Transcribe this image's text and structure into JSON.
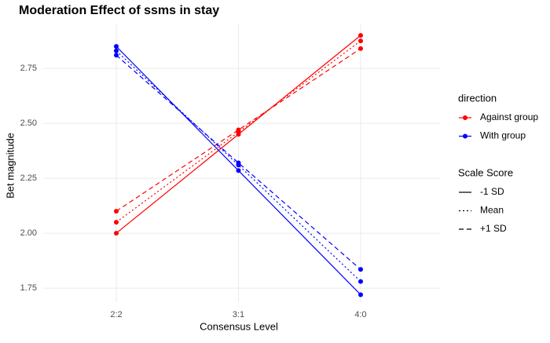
{
  "chart_data": {
    "type": "line",
    "title": "Moderation Effect of ssms in stay",
    "x_label": "Consensus Level",
    "y_label": "Bet magnitude",
    "categories": [
      "2:2",
      "3:1",
      "4:0"
    ],
    "ylim": [
      1.686,
      2.954
    ],
    "yticks": [
      {
        "value": 1.75,
        "label": "1.75"
      },
      {
        "value": 2,
        "label": "2.00"
      },
      {
        "value": 2.25,
        "label": "2.25"
      },
      {
        "value": 2.5,
        "label": "2.50"
      },
      {
        "value": 2.75,
        "label": "2.75"
      }
    ],
    "grid": true,
    "legends": [
      {
        "title": "direction",
        "entries": [
          {
            "name": "Against group",
            "color": "#ff0000"
          },
          {
            "name": "With group",
            "color": "#0000ff"
          }
        ]
      },
      {
        "title": "Scale Score",
        "entries": [
          {
            "name": "-1 SD",
            "linetype": "solid"
          },
          {
            "name": "Mean",
            "linetype": "dotted"
          },
          {
            "name": "+1 SD",
            "linetype": "dashed"
          }
        ]
      }
    ],
    "series": [
      {
        "color": "#ff0000",
        "linetype": "solid",
        "values": [
          2.0,
          2.45,
          2.9
        ]
      },
      {
        "color": "#ff0000",
        "linetype": "dotted",
        "values": [
          2.05,
          2.46,
          2.875
        ]
      },
      {
        "color": "#ff0000",
        "linetype": "dashed",
        "values": [
          2.1,
          2.47,
          2.84
        ]
      },
      {
        "color": "#0000ff",
        "linetype": "solid",
        "values": [
          2.85,
          2.285,
          1.72
        ]
      },
      {
        "color": "#0000ff",
        "linetype": "dotted",
        "values": [
          2.83,
          2.31,
          1.78
        ]
      },
      {
        "color": "#0000ff",
        "linetype": "dashed",
        "values": [
          2.81,
          2.32,
          1.835
        ]
      }
    ]
  }
}
